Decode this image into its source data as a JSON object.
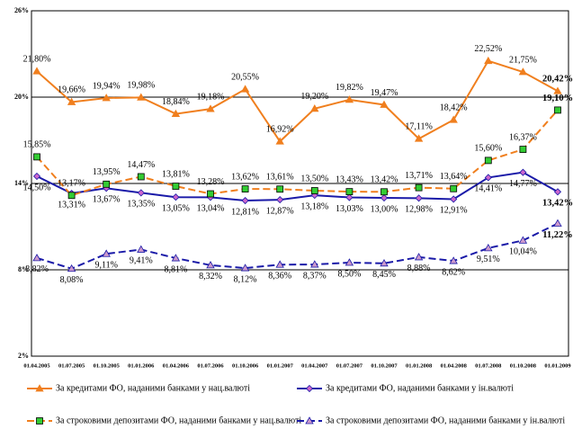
{
  "chart_data": {
    "type": "line",
    "categories": [
      "01.04.2005",
      "01.07.2005",
      "01.10.2005",
      "01.01.2006",
      "01.04.2006",
      "01.07.2006",
      "01.10.2006",
      "01.01.2007",
      "01.04.2007",
      "01.07.2007",
      "01.10.2007",
      "01.01.2008",
      "01.04.2008",
      "01.07.2008",
      "01.10.2008",
      "01.01.2009"
    ],
    "ylim": [
      2,
      26
    ],
    "yticks": [
      {
        "value": 2,
        "label": "2%"
      },
      {
        "value": 8,
        "label": "8%"
      },
      {
        "value": 14,
        "label": "14%"
      },
      {
        "value": 20,
        "label": "20%"
      },
      {
        "value": 26,
        "label": "26%"
      }
    ],
    "grid": true,
    "series": [
      {
        "name": "За кредитами ФО, наданими банками у нац.валюті",
        "color": "#f07f1e",
        "marker": "triangle",
        "dashed": false,
        "values": [
          21.8,
          19.66,
          19.94,
          19.98,
          18.84,
          19.18,
          20.55,
          16.92,
          19.2,
          19.82,
          19.47,
          17.11,
          18.42,
          22.52,
          21.75,
          20.42
        ],
        "value_labels": [
          "21,80%",
          "19,66%",
          "19,94%",
          "19,98%",
          "18,84%",
          "19,18%",
          "20,55%",
          "16,92%",
          "19,20%",
          "19,82%",
          "19,47%",
          "17,11%",
          "18,42%",
          "22,52%",
          "21,75%",
          "20,42%"
        ]
      },
      {
        "name": "За кредитами ФО, наданими банками у ін.валюті",
        "color": "#1a1aa8",
        "marker": "diamond",
        "dashed": false,
        "values": [
          14.5,
          13.31,
          13.67,
          13.35,
          13.05,
          13.04,
          12.81,
          12.87,
          13.18,
          13.03,
          13.0,
          12.98,
          12.91,
          14.41,
          14.77,
          13.42
        ],
        "value_labels": [
          "14,50%",
          "13,31%",
          "13,67%",
          "13,35%",
          "13,05%",
          "13,04%",
          "12,81%",
          "12,87%",
          "13,18%",
          "13,03%",
          "13,00%",
          "12,98%",
          "12,91%",
          "14,41%",
          "14,77%",
          "13,42%"
        ]
      },
      {
        "name": "За строковими депозитами ФО, наданими банками у нац.валюті",
        "color": "#f07f1e",
        "marker": "square",
        "marker_color": "#33cc33",
        "dashed": true,
        "values": [
          15.85,
          13.17,
          13.95,
          14.47,
          13.81,
          13.28,
          13.62,
          13.61,
          13.5,
          13.43,
          13.42,
          13.71,
          13.64,
          15.6,
          16.37,
          19.1
        ],
        "value_labels": [
          "15,85%",
          "13,17%",
          "13,95%",
          "14,47%",
          "13,81%",
          "13,28%",
          "13,62%",
          "13,61%",
          "13,50%",
          "13,43%",
          "13,42%",
          "13,71%",
          "13,64%",
          "15,60%",
          "16,37%",
          "19,10%"
        ]
      },
      {
        "name": "За строковими депозитами ФО, наданими банками у ін.валюті",
        "color": "#1a1aa8",
        "marker": "triangle",
        "marker_color": "#cc99cc",
        "dashed": true,
        "values": [
          8.82,
          8.08,
          9.11,
          9.41,
          8.81,
          8.32,
          8.12,
          8.36,
          8.37,
          8.5,
          8.45,
          8.88,
          8.62,
          9.51,
          10.04,
          11.22
        ],
        "value_labels": [
          "8,82%",
          "8,08%",
          "9,11%",
          "9,41%",
          "8,81%",
          "8,32%",
          "8,12%",
          "8,36%",
          "8,37%",
          "8,50%",
          "8,45%",
          "8,88%",
          "8,62%",
          "9,51%",
          "10,04%",
          "11,22%"
        ]
      }
    ]
  }
}
